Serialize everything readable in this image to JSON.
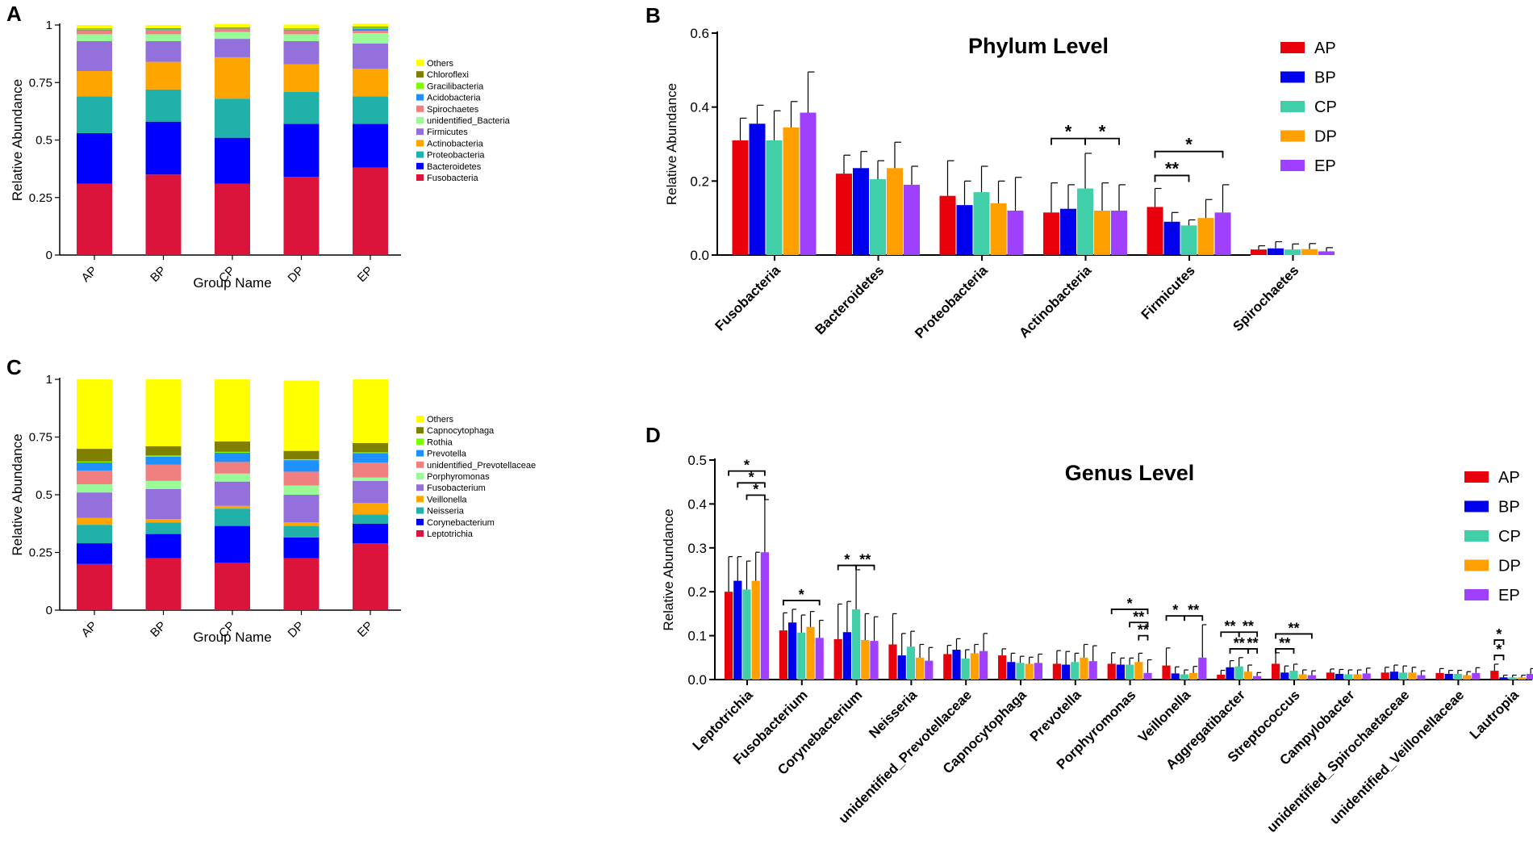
{
  "chart_data": [
    {
      "id": "A",
      "type": "bar",
      "stacked": true,
      "panel_label": "A",
      "xlabel": "Group Name",
      "ylabel": "Relative Abundance",
      "ylim": [
        0,
        1
      ],
      "yticks": [
        "0",
        "0.25",
        "0.5",
        "0.75",
        "1"
      ],
      "categories": [
        "AP",
        "BP",
        "CP",
        "DP",
        "EP"
      ],
      "series": [
        {
          "name": "Fusobacteria",
          "color": "#DC143C",
          "values": [
            0.31,
            0.35,
            0.31,
            0.34,
            0.38
          ]
        },
        {
          "name": "Bacteroidetes",
          "color": "#0000FF",
          "values": [
            0.22,
            0.23,
            0.2,
            0.23,
            0.19
          ]
        },
        {
          "name": "Proteobacteria",
          "color": "#20B2AA",
          "values": [
            0.16,
            0.14,
            0.17,
            0.14,
            0.12
          ]
        },
        {
          "name": "Actinobacteria",
          "color": "#FFA500",
          "values": [
            0.11,
            0.12,
            0.18,
            0.12,
            0.12
          ]
        },
        {
          "name": "Firmicutes",
          "color": "#9370DB",
          "values": [
            0.13,
            0.09,
            0.08,
            0.1,
            0.11
          ]
        },
        {
          "name": "unidentified_Bacteria",
          "color": "#98FB98",
          "values": [
            0.03,
            0.03,
            0.03,
            0.03,
            0.045
          ]
        },
        {
          "name": "Spirochaetes",
          "color": "#F08080",
          "values": [
            0.017,
            0.018,
            0.012,
            0.017,
            0.01
          ]
        },
        {
          "name": "Acidobacteria",
          "color": "#1E90FF",
          "values": [
            0.003,
            0.003,
            0.003,
            0.003,
            0.01
          ]
        },
        {
          "name": "Gracilibacteria",
          "color": "#7CFC00",
          "values": [
            0.002,
            0.002,
            0.002,
            0.002,
            0.004
          ]
        },
        {
          "name": "Chloroflexi",
          "color": "#808000",
          "values": [
            0.003,
            0.003,
            0.003,
            0.003,
            0.004
          ]
        },
        {
          "name": "Others",
          "color": "#FFFF00",
          "values": [
            0.015,
            0.014,
            0.015,
            0.017,
            0.013
          ]
        }
      ],
      "legend_order": [
        "Others",
        "Chloroflexi",
        "Gracilibacteria",
        "Acidobacteria",
        "Spirochaetes",
        "unidentified_Bacteria",
        "Firmicutes",
        "Actinobacteria",
        "Proteobacteria",
        "Bacteroidetes",
        "Fusobacteria"
      ]
    },
    {
      "id": "B",
      "type": "bar",
      "panel_label": "B",
      "title": "Phylum Level",
      "ylabel": "Relative Abundance",
      "ylim": [
        0,
        0.6
      ],
      "yticks": [
        "0.0",
        "0.2",
        "0.4",
        "0.6"
      ],
      "categories": [
        "Fusobacteria",
        "Bacteroidetes",
        "Proteobacteria",
        "Actinobacteria",
        "Firmicutes",
        "Spirochaetes"
      ],
      "series": [
        {
          "name": "AP",
          "color": "#E8000B",
          "values": [
            0.31,
            0.22,
            0.16,
            0.115,
            0.13,
            0.015
          ],
          "errors": [
            0.06,
            0.05,
            0.095,
            0.08,
            0.05,
            0.01
          ]
        },
        {
          "name": "BP",
          "color": "#0000EE",
          "values": [
            0.355,
            0.235,
            0.135,
            0.125,
            0.09,
            0.018
          ],
          "errors": [
            0.05,
            0.045,
            0.065,
            0.065,
            0.025,
            0.018
          ]
        },
        {
          "name": "CP",
          "color": "#40CFA8",
          "values": [
            0.31,
            0.205,
            0.17,
            0.18,
            0.08,
            0.015
          ],
          "errors": [
            0.08,
            0.05,
            0.07,
            0.095,
            0.015,
            0.015
          ]
        },
        {
          "name": "DP",
          "color": "#FF9F00",
          "values": [
            0.345,
            0.235,
            0.14,
            0.12,
            0.1,
            0.016
          ],
          "errors": [
            0.07,
            0.07,
            0.06,
            0.075,
            0.05,
            0.015
          ]
        },
        {
          "name": "EP",
          "color": "#A040FF",
          "values": [
            0.385,
            0.19,
            0.12,
            0.12,
            0.115,
            0.01
          ],
          "errors": [
            0.11,
            0.05,
            0.09,
            0.07,
            0.075,
            0.01
          ]
        }
      ],
      "significance": [
        {
          "category": 3,
          "from": 0,
          "to": 2,
          "level": 0.315,
          "label": "*"
        },
        {
          "category": 3,
          "from": 2,
          "to": 4,
          "level": 0.315,
          "label": "*"
        },
        {
          "category": 4,
          "from": 0,
          "to": 4,
          "level": 0.28,
          "label": "*"
        },
        {
          "category": 4,
          "from": 0,
          "to": 2,
          "level": 0.215,
          "label": "**"
        }
      ]
    },
    {
      "id": "C",
      "type": "bar",
      "stacked": true,
      "panel_label": "C",
      "xlabel": "Group Name",
      "ylabel": "Relative Abundance",
      "ylim": [
        0,
        1
      ],
      "yticks": [
        "0",
        "0.25",
        "0.5",
        "0.75",
        "1"
      ],
      "categories": [
        "AP",
        "BP",
        "CP",
        "DP",
        "EP"
      ],
      "series": [
        {
          "name": "Leptotrichia",
          "color": "#DC143C",
          "values": [
            0.2,
            0.225,
            0.205,
            0.225,
            0.29
          ]
        },
        {
          "name": "Corynebacterium",
          "color": "#0000FF",
          "values": [
            0.09,
            0.105,
            0.16,
            0.09,
            0.085
          ]
        },
        {
          "name": "Neisseria",
          "color": "#20B2AA",
          "values": [
            0.08,
            0.05,
            0.075,
            0.05,
            0.04
          ]
        },
        {
          "name": "Veillonella",
          "color": "#FFA500",
          "values": [
            0.03,
            0.015,
            0.012,
            0.015,
            0.05
          ]
        },
        {
          "name": "Fusobacterium",
          "color": "#9370DB",
          "values": [
            0.11,
            0.13,
            0.105,
            0.12,
            0.095
          ]
        },
        {
          "name": "Porphyromonas",
          "color": "#98FB98",
          "values": [
            0.035,
            0.035,
            0.035,
            0.04,
            0.015
          ]
        },
        {
          "name": "unidentified_Prevotellaceae",
          "color": "#F08080",
          "values": [
            0.06,
            0.07,
            0.05,
            0.06,
            0.065
          ]
        },
        {
          "name": "Prevotella",
          "color": "#1E90FF",
          "values": [
            0.035,
            0.035,
            0.04,
            0.05,
            0.04
          ]
        },
        {
          "name": "Rothia",
          "color": "#7CFC00",
          "values": [
            0.004,
            0.005,
            0.004,
            0.004,
            0.004
          ]
        },
        {
          "name": "Capnocytophaga",
          "color": "#808000",
          "values": [
            0.055,
            0.04,
            0.045,
            0.036,
            0.04
          ]
        },
        {
          "name": "Others",
          "color": "#FFFF00",
          "values": [
            0.301,
            0.29,
            0.269,
            0.305,
            0.276
          ]
        }
      ],
      "legend_order": [
        "Others",
        "Capnocytophaga",
        "Rothia",
        "Prevotella",
        "unidentified_Prevotellaceae",
        "Porphyromonas",
        "Fusobacterium",
        "Veillonella",
        "Neisseria",
        "Corynebacterium",
        "Leptotrichia"
      ]
    },
    {
      "id": "D",
      "type": "bar",
      "panel_label": "D",
      "title": "Genus Level",
      "ylabel": "Relative Abundance",
      "ylim": [
        0,
        0.5
      ],
      "yticks": [
        "0.0",
        "0.1",
        "0.2",
        "0.3",
        "0.4",
        "0.5"
      ],
      "categories": [
        "Leptotrichia",
        "Fusobacterium",
        "Corynebacterium",
        "Neisseria",
        "unidentified_Prevotellaceae",
        "Capnocytophaga",
        "Prevotella",
        "Porphyromonas",
        "Veillonella",
        "Aggregatibacter",
        "Streptococcus",
        "Campylobacter",
        "unidentified_Spirochaetaceae",
        "unidentified_Veillonellaceae",
        "Lautropia"
      ],
      "series": [
        {
          "name": "AP",
          "color": "#E8000B",
          "values": [
            0.2,
            0.112,
            0.092,
            0.08,
            0.058,
            0.055,
            0.036,
            0.036,
            0.032,
            0.011,
            0.036,
            0.016,
            0.016,
            0.015,
            0.02
          ],
          "errors": [
            0.08,
            0.04,
            0.08,
            0.07,
            0.02,
            0.015,
            0.03,
            0.025,
            0.04,
            0.01,
            0.025,
            0.008,
            0.012,
            0.01,
            0.015
          ]
        },
        {
          "name": "BP",
          "color": "#0000EE",
          "values": [
            0.225,
            0.13,
            0.108,
            0.055,
            0.068,
            0.04,
            0.034,
            0.034,
            0.014,
            0.028,
            0.016,
            0.013,
            0.018,
            0.013,
            0.005
          ],
          "errors": [
            0.055,
            0.03,
            0.07,
            0.05,
            0.025,
            0.02,
            0.03,
            0.015,
            0.015,
            0.015,
            0.015,
            0.01,
            0.015,
            0.008,
            0.005
          ]
        },
        {
          "name": "CP",
          "color": "#40CFA8",
          "values": [
            0.205,
            0.107,
            0.16,
            0.075,
            0.048,
            0.038,
            0.04,
            0.034,
            0.012,
            0.03,
            0.02,
            0.012,
            0.016,
            0.013,
            0.005
          ],
          "errors": [
            0.065,
            0.04,
            0.09,
            0.035,
            0.02,
            0.015,
            0.02,
            0.015,
            0.01,
            0.02,
            0.015,
            0.01,
            0.015,
            0.008,
            0.005
          ]
        },
        {
          "name": "DP",
          "color": "#FF9F00",
          "values": [
            0.225,
            0.12,
            0.09,
            0.05,
            0.06,
            0.036,
            0.05,
            0.04,
            0.015,
            0.018,
            0.012,
            0.012,
            0.016,
            0.01,
            0.005
          ],
          "errors": [
            0.065,
            0.035,
            0.06,
            0.03,
            0.02,
            0.015,
            0.03,
            0.02,
            0.015,
            0.015,
            0.01,
            0.01,
            0.012,
            0.008,
            0.005
          ]
        },
        {
          "name": "EP",
          "color": "#A040FF",
          "values": [
            0.29,
            0.095,
            0.088,
            0.043,
            0.065,
            0.038,
            0.042,
            0.015,
            0.05,
            0.008,
            0.01,
            0.014,
            0.01,
            0.015,
            0.013
          ],
          "errors": [
            0.12,
            0.04,
            0.055,
            0.03,
            0.04,
            0.02,
            0.035,
            0.03,
            0.075,
            0.008,
            0.01,
            0.012,
            0.01,
            0.012,
            0.012
          ]
        }
      ],
      "significance": [
        {
          "category": 0,
          "from": 0,
          "to": 4,
          "level": 0.475,
          "label": "*"
        },
        {
          "category": 0,
          "from": 1,
          "to": 4,
          "level": 0.448,
          "label": "*"
        },
        {
          "category": 0,
          "from": 2,
          "to": 4,
          "level": 0.42,
          "label": "*"
        },
        {
          "category": 1,
          "from": 0,
          "to": 4,
          "level": 0.18,
          "label": "*"
        },
        {
          "category": 2,
          "from": 0,
          "to": 2,
          "level": 0.26,
          "label": "*"
        },
        {
          "category": 2,
          "from": 2,
          "to": 4,
          "level": 0.26,
          "label": "**"
        },
        {
          "category": 7,
          "from": 0,
          "to": 4,
          "level": 0.16,
          "label": "*"
        },
        {
          "category": 7,
          "from": 2,
          "to": 4,
          "level": 0.13,
          "label": "**"
        },
        {
          "category": 7,
          "from": 3,
          "to": 4,
          "level": 0.1,
          "label": "**"
        },
        {
          "category": 8,
          "from": 0,
          "to": 2,
          "level": 0.145,
          "label": "*"
        },
        {
          "category": 8,
          "from": 2,
          "to": 4,
          "level": 0.145,
          "label": "**"
        },
        {
          "category": 9,
          "from": 0,
          "to": 2,
          "level": 0.108,
          "label": "**"
        },
        {
          "category": 9,
          "from": 2,
          "to": 4,
          "level": 0.108,
          "label": "**"
        },
        {
          "category": 9,
          "from": 1,
          "to": 3,
          "level": 0.07,
          "label": "**"
        },
        {
          "category": 9,
          "from": 3,
          "to": 4,
          "level": 0.07,
          "label": "**"
        },
        {
          "category": 10,
          "from": 0,
          "to": 4,
          "level": 0.104,
          "label": "**"
        },
        {
          "category": 10,
          "from": 0,
          "to": 2,
          "level": 0.07,
          "label": "**"
        },
        {
          "category": 14,
          "from": 0,
          "to": 1,
          "level": 0.09,
          "label": "*"
        },
        {
          "category": 14,
          "from": 0,
          "to": 1,
          "level": 0.055,
          "label": "*"
        }
      ]
    }
  ]
}
